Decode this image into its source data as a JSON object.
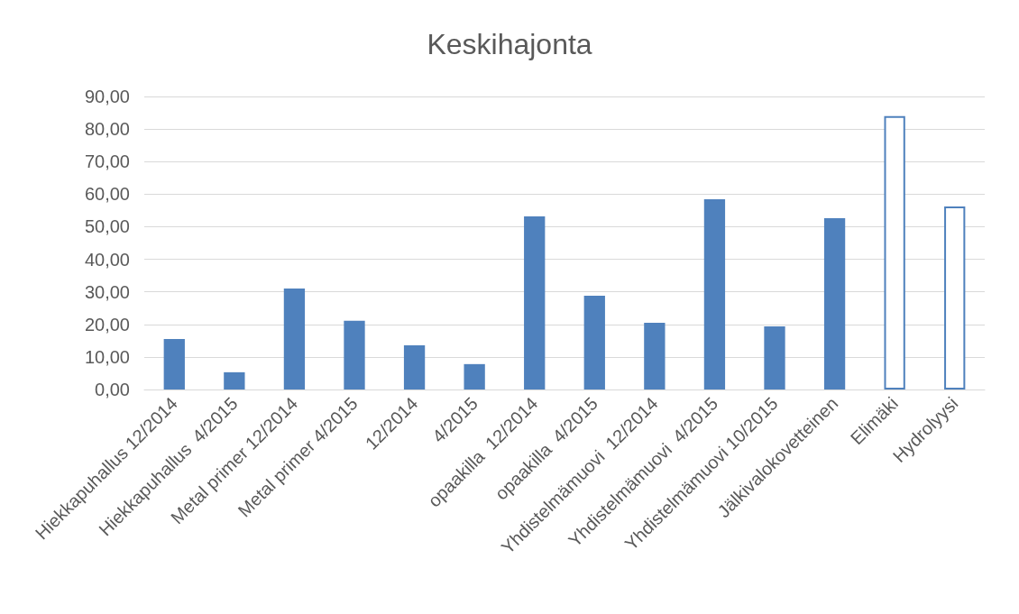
{
  "chart_data": {
    "type": "bar",
    "title": "Keskihajonta",
    "categories": [
      "Hiekkapuhallus 12/2014",
      "Hiekkapuhallus  4/2015",
      "Metal primer 12/2014",
      "Metal primer 4/2015",
      "12/2014",
      "4/2015",
      "opaakilla  12/2014",
      "opaakilla  4/2015",
      "Yhdistelmämuovi  12/2014",
      "Yhdistelmämuovi  4/2015",
      "Yhdistelmämuovi 10/2015",
      "Jälkivalokovetteinen",
      "Elimäki",
      "Hydrolyysi"
    ],
    "values": [
      15.5,
      5.3,
      31.0,
      21.1,
      13.6,
      7.8,
      53.2,
      28.8,
      20.5,
      58.4,
      19.4,
      52.6,
      84.0,
      56.2
    ],
    "color": "#4f81bd",
    "colors": [
      "#4f81bd",
      "#4f81bd",
      "#4f81bd",
      "#4f81bd",
      "#4f81bd",
      "#4f81bd",
      "#4f81bd",
      "#4f81bd",
      "#4f81bd",
      "#4f81bd",
      "#4f81bd",
      "#4f81bd",
      "#ffffff",
      "#ffffff"
    ],
    "ylim": [
      0,
      90
    ],
    "yticks": [
      {
        "value": 0,
        "label": "0,00"
      },
      {
        "value": 10,
        "label": "10,00"
      },
      {
        "value": 20,
        "label": "20,00"
      },
      {
        "value": 30,
        "label": "30,00"
      },
      {
        "value": 40,
        "label": "40,00"
      },
      {
        "value": 50,
        "label": "50,00"
      },
      {
        "value": 60,
        "label": "60,00"
      },
      {
        "value": 70,
        "label": "70,00"
      },
      {
        "value": 80,
        "label": "80,00"
      },
      {
        "value": 90,
        "label": "90,00"
      }
    ],
    "grid": "y"
  }
}
